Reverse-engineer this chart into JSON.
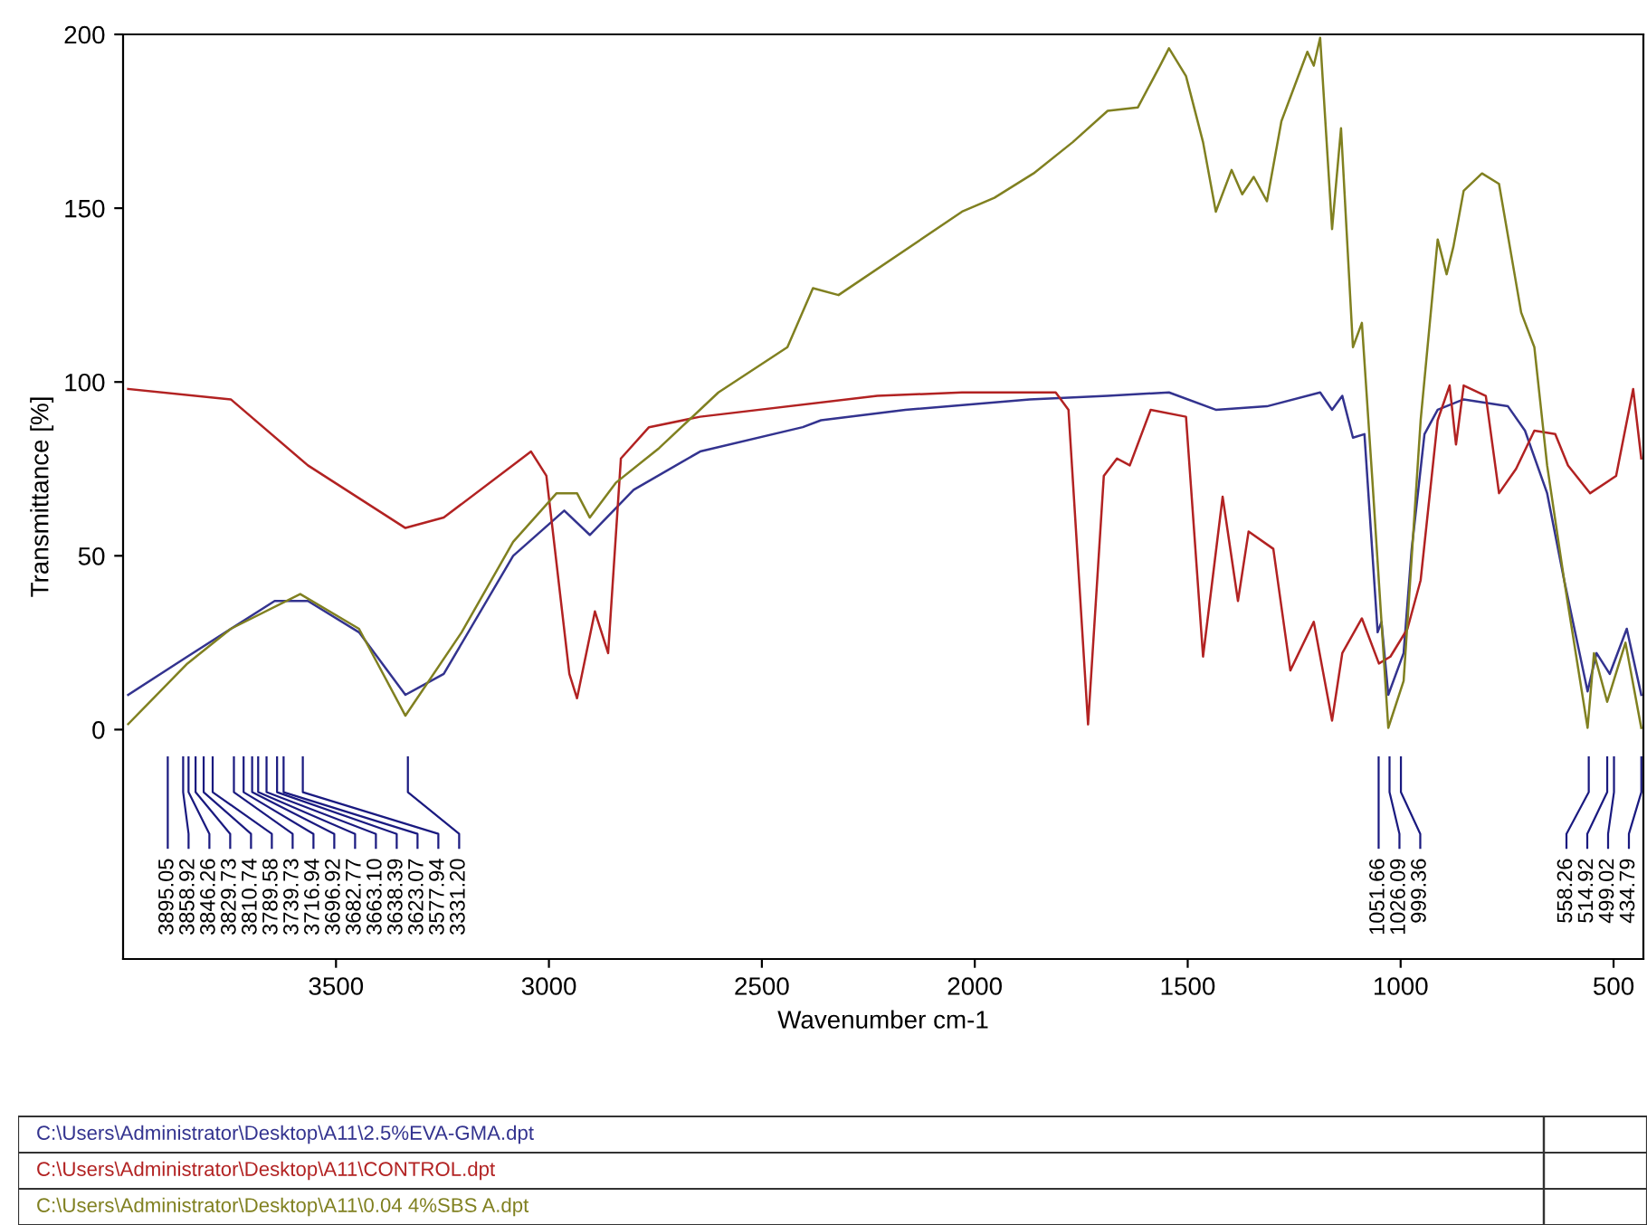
{
  "chart_data": {
    "type": "line",
    "xlabel": "Wavenumber cm-1",
    "ylabel": "Transmittance [%]",
    "xlim": [
      4000,
      430
    ],
    "xticks": [
      3500,
      3000,
      2500,
      2000,
      1500,
      1000,
      500
    ],
    "ylim": [
      -66,
      200
    ],
    "yticks": [
      0,
      50,
      100,
      150,
      200
    ],
    "grid": false,
    "legend": "bottom",
    "marker": "none",
    "line_style": "solid",
    "series": [
      {
        "name": "C:\\Users\\Administrator\\Desktop\\A11\\2.5%EVA-GMA.dpt",
        "color": "#33338f",
        "x": [
          3988,
          3849,
          3644,
          3566,
          3446,
          3337,
          3247,
          3084,
          2964,
          2904,
          2801,
          2645,
          2404,
          2361,
          2163,
          1871,
          1688,
          1544,
          1434,
          1314,
          1189,
          1161,
          1137,
          1112,
          1085,
          1054,
          1045,
          1029,
          993,
          974,
          944,
          913,
          852,
          748,
          708,
          656,
          616,
          561,
          540,
          509,
          469,
          435
        ],
        "values": [
          10,
          21,
          37,
          37,
          28,
          10,
          16,
          50,
          63,
          56,
          69,
          80,
          87,
          89,
          92,
          95,
          96,
          97,
          92,
          93,
          97,
          92,
          96,
          84,
          85,
          28,
          31,
          10,
          22,
          52,
          85,
          92,
          95,
          93,
          86,
          68,
          43,
          11,
          22,
          16,
          29,
          10
        ]
      },
      {
        "name": "C:\\Users\\Administrator\\Desktop\\A11\\CONTROL.dpt",
        "color": "#b22222",
        "x": [
          3988,
          3747,
          3566,
          3337,
          3247,
          3042,
          3006,
          2952,
          2934,
          2892,
          2861,
          2831,
          2765,
          2645,
          2229,
          2030,
          1810,
          1780,
          1734,
          1697,
          1666,
          1636,
          1587,
          1504,
          1464,
          1418,
          1382,
          1357,
          1299,
          1259,
          1204,
          1161,
          1137,
          1091,
          1051,
          1024,
          984,
          953,
          913,
          885,
          870,
          852,
          800,
          769,
          729,
          686,
          637,
          607,
          555,
          494,
          454,
          435
        ],
        "values": [
          98,
          95,
          76,
          58,
          61,
          80,
          73,
          16,
          9,
          34,
          22,
          78,
          87,
          90,
          96,
          97,
          97,
          92,
          1.5,
          73,
          78,
          76,
          92,
          90,
          21,
          67,
          37,
          57,
          52,
          17,
          31,
          2.6,
          22,
          32,
          19,
          21,
          29,
          43,
          89,
          99,
          82,
          99,
          96,
          68,
          75,
          86,
          85,
          76,
          68,
          73,
          98,
          78
        ]
      },
      {
        "name": "C:\\Users\\Administrator\\Desktop\\A11\\0.04 4%SBS A.dpt",
        "color": "#808020",
        "x": [
          3988,
          3849,
          3747,
          3584,
          3446,
          3337,
          3205,
          3084,
          2982,
          2934,
          2904,
          2843,
          2741,
          2602,
          2440,
          2380,
          2320,
          2030,
          1954,
          1862,
          1770,
          1688,
          1617,
          1565,
          1544,
          1504,
          1464,
          1434,
          1397,
          1372,
          1345,
          1314,
          1280,
          1219,
          1204,
          1189,
          1161,
          1140,
          1112,
          1091,
          1066,
          1029,
          993,
          953,
          913,
          892,
          876,
          852,
          809,
          769,
          717,
          686,
          656,
          616,
          561,
          546,
          515,
          472,
          435
        ],
        "values": [
          1.6,
          19,
          29,
          39,
          29,
          4,
          28,
          54,
          68,
          68,
          61,
          71,
          81,
          97,
          110,
          127,
          125,
          149,
          153,
          160,
          169,
          178,
          179,
          191,
          196,
          188,
          169,
          149,
          161,
          154,
          159,
          152,
          175,
          195,
          191,
          199,
          144,
          173,
          110,
          117,
          71,
          0.5,
          14,
          89,
          141,
          131,
          139,
          155,
          160,
          157,
          120,
          110,
          76,
          43,
          0.5,
          22,
          8,
          25,
          0.5
        ]
      }
    ],
    "annotations": [
      "3895.05",
      "3858.92",
      "3846.26",
      "3829.73",
      "3810.74",
      "3789.58",
      "3739.73",
      "3716.94",
      "3696.92",
      "3682.77",
      "3663.10",
      "3638.39",
      "3623.07",
      "3577.94",
      "3331.20",
      "1051.66",
      "1026.09",
      "999.36",
      "558.26",
      "514.92",
      "499.02",
      "434.79"
    ]
  }
}
